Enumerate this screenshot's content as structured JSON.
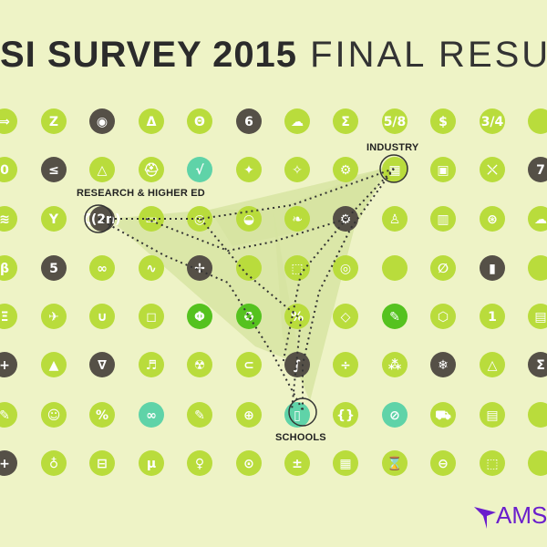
{
  "title": {
    "bold": "SI SURVEY 2015",
    "light": "FINAL RESU"
  },
  "labels": {
    "research": "RESEARCH & HIGHER ED",
    "industry": "INDUSTRY",
    "schools": "SCHOOLS"
  },
  "logo": {
    "text": "AMS"
  },
  "colors": {
    "background": "#eef3c6",
    "green": "#b9dc3c",
    "dark": "#555047",
    "teal": "#5fd3a8",
    "bright_green": "#55c21f",
    "region": "#d6e4a0",
    "logo": "#6a1ecc"
  },
  "grid": {
    "rows": [
      [
        "green:⇒",
        "green:Z",
        "dark:◉",
        "green:Δ",
        "green:Θ",
        "dark:6",
        "green:☁",
        "green:Σ",
        "green:5/8",
        "green:$",
        "green:3/4",
        "green:"
      ],
      [
        "green:0",
        "dark:≤",
        "green:△",
        "green:⛑",
        "teal:√",
        "green:✦",
        "green:✧",
        "green:⚙",
        "green:▦",
        "green:▣",
        "green:⤬",
        "dark:7"
      ],
      [
        "green:≋",
        "green:Y",
        "dark:ζ(2n)",
        "green:▭",
        "green:◎",
        "green:◒",
        "green:❧",
        "dark:⚙",
        "green:♙",
        "green:▥",
        "green:⊛",
        "green:☁"
      ],
      [
        "green:β",
        "dark:5",
        "green:∞",
        "green:∿",
        "dark:✢",
        "green:",
        "green:⬚",
        "green:◎",
        "green:",
        "green:∅",
        "dark:▮",
        "green:"
      ],
      [
        "green:Ξ",
        "green:✈",
        "green:∪",
        "green:◻",
        "bright:Φ",
        "bright:♻",
        "green:%",
        "green:◇",
        "bright:✎",
        "green:⬡",
        "green:1",
        "green:▤"
      ],
      [
        "dark:+",
        "green:▲",
        "dark:∇",
        "green:♬",
        "green:☢",
        "green:⊂",
        "dark:∫",
        "green:÷",
        "green:⁂",
        "dark:❄",
        "green:△",
        "dark:Σ"
      ],
      [
        "green:✎",
        "green:☺",
        "green:%",
        "teal:∞",
        "green:✎",
        "green:⊕",
        "teal:▯",
        "green:{}",
        "teal:⊘",
        "green:⛟",
        "green:▤",
        "green:"
      ],
      [
        "dark:+",
        "green:♁",
        "green:⊟",
        "green:μ",
        "green:♀",
        "green:⊙",
        "green:±",
        "green:▦",
        "green:⌛",
        "green:⊖",
        "green:⬚",
        "green:"
      ]
    ]
  }
}
